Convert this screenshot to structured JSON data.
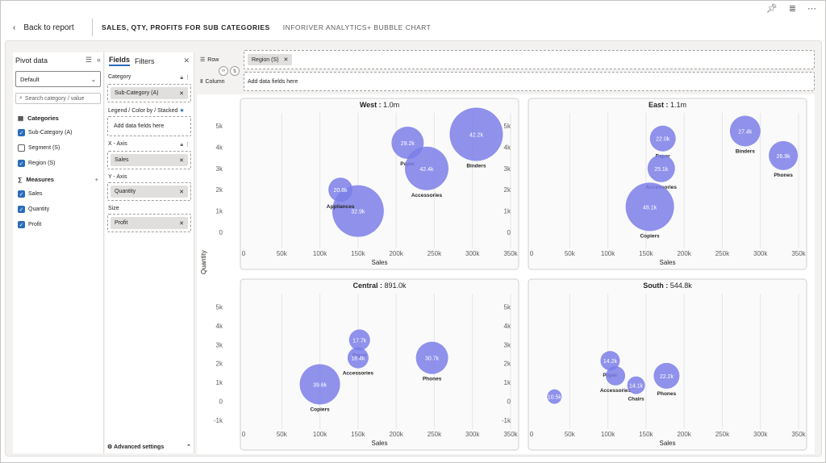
{
  "toolbar": {
    "pin_icon": "pin-icon",
    "filter_icon": "filter-icon",
    "more_icon": "more-icon"
  },
  "header": {
    "back_label": "Back to report",
    "title": "SALES, QTY, PROFITS FOR SUB CATEGORIES",
    "subtitle": "INFORIVER ANALYTICS+ BUBBLE CHART"
  },
  "pivot": {
    "title": "Pivot data",
    "view_select": "Default",
    "search_placeholder": "Search category / value",
    "categories_label": "Categories",
    "categories": [
      {
        "label": "Sub-Category (A)",
        "checked": true
      },
      {
        "label": "Segment (S)",
        "checked": false
      },
      {
        "label": "Region (S)",
        "checked": true
      }
    ],
    "measures_label": "Measures",
    "measures": [
      {
        "label": "Sales",
        "checked": true
      },
      {
        "label": "Quantity",
        "checked": true
      },
      {
        "label": "Profit",
        "checked": true
      }
    ]
  },
  "fields": {
    "tab_fields": "Fields",
    "tab_filters": "Filters",
    "category_label": "Category",
    "category_pill": "Sub-Category (A)",
    "legend_label": "Legend / Color by / Stacked",
    "legend_placeholder": "Add data fields here",
    "xaxis_label": "X - Axis",
    "xaxis_pill": "Sales",
    "yaxis_label": "Y - Axis",
    "yaxis_pill": "Quantity",
    "size_label": "Size",
    "size_pill": "Profit",
    "advanced": "Advanced settings"
  },
  "rowcol": {
    "row_label": "Row",
    "row_pill": "Region (S)",
    "column_label": "Column",
    "column_placeholder": "Add data fields here"
  },
  "y_axis_title": "Quantity",
  "chart_data": {
    "type": "scatter",
    "bubble_color": "#7b7ee8",
    "x_axis_label": "Sales",
    "x_ticks": [
      "0",
      "50k",
      "100k",
      "150k",
      "200k",
      "250k",
      "300k",
      "350k"
    ],
    "panels": [
      {
        "region": "West",
        "total": "1.0m",
        "y_ticks": [
          "0",
          "1k",
          "2k",
          "3k",
          "4k",
          "5k"
        ],
        "ylim": [
          -0.6,
          5.6
        ],
        "points": [
          {
            "name": "Binders",
            "x": 305000,
            "y": 4600,
            "profit": "42.2k",
            "r": 33
          },
          {
            "name": "Paper",
            "x": 215000,
            "y": 4200,
            "profit": "29.2k",
            "r": 20
          },
          {
            "name": "Accessories",
            "x": 240000,
            "y": 3000,
            "profit": "42.4k",
            "r": 27
          },
          {
            "name": "",
            "x": 150000,
            "y": 1000,
            "profit": "32.9k",
            "r": 32
          },
          {
            "name": "Appliances",
            "x": 127000,
            "y": 2000,
            "profit": "20.8k",
            "r": 15
          }
        ]
      },
      {
        "region": "East",
        "total": "1.1m",
        "y_ticks": [
          "0",
          "1k",
          "2k",
          "3k",
          "4k",
          "5k"
        ],
        "ylim": [
          -0.6,
          5.6
        ],
        "points": [
          {
            "name": "Binders",
            "x": 280000,
            "y": 4750,
            "profit": "27.4k",
            "r": 19
          },
          {
            "name": "Paper",
            "x": 172000,
            "y": 4400,
            "profit": "22.0k",
            "r": 16
          },
          {
            "name": "Phones",
            "x": 330000,
            "y": 3600,
            "profit": "26.9k",
            "r": 18
          },
          {
            "name": "Accessories",
            "x": 170000,
            "y": 3000,
            "profit": "25.1k",
            "r": 17
          },
          {
            "name": "Copiers",
            "x": 155000,
            "y": 1200,
            "profit": "48.1k",
            "r": 30
          }
        ]
      },
      {
        "region": "Central",
        "total": "891.0k",
        "y_ticks": [
          "-1k",
          "0",
          "1k",
          "2k",
          "3k",
          "4k",
          "5k"
        ],
        "ylim": [
          -1.3,
          5.7
        ],
        "points": [
          {
            "name": "Paper",
            "x": 152000,
            "y": 3250,
            "profit": "17.7k",
            "r": 13
          },
          {
            "name": "Accessories",
            "x": 150000,
            "y": 2300,
            "profit": "18.4k",
            "r": 13
          },
          {
            "name": "Phones",
            "x": 247000,
            "y": 2300,
            "profit": "30.7k",
            "r": 20
          },
          {
            "name": "Copiers",
            "x": 100000,
            "y": 900,
            "profit": "39.6k",
            "r": 25
          }
        ]
      },
      {
        "region": "South",
        "total": "544.8k",
        "y_ticks": [
          "-1k",
          "0",
          "1k",
          "2k",
          "3k",
          "4k",
          "5k"
        ],
        "ylim": [
          -1.3,
          5.7
        ],
        "points": [
          {
            "name": "Paper",
            "x": 103000,
            "y": 2150,
            "profit": "14.2k",
            "r": 12
          },
          {
            "name": "Accessories",
            "x": 110000,
            "y": 1350,
            "profit": "",
            "r": 12
          },
          {
            "name": "Phones",
            "x": 177000,
            "y": 1350,
            "profit": "22.2k",
            "r": 16
          },
          {
            "name": "Chairs",
            "x": 137000,
            "y": 850,
            "profit": "14.1k",
            "r": 11
          },
          {
            "name": "",
            "x": 30000,
            "y": 250,
            "profit": "10.5k",
            "r": 9
          }
        ]
      }
    ]
  }
}
